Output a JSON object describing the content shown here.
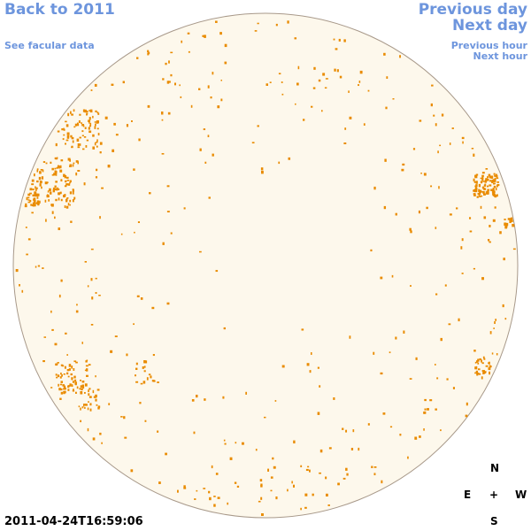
{
  "nav": {
    "back": "Back to 2011",
    "facular_data": "See facular data",
    "previous_day": "Previous day",
    "next_day": "Next day",
    "previous_hour": "Previous hour",
    "next_hour": "Next hour"
  },
  "compass": {
    "north": "N",
    "east": "E",
    "center": "+",
    "west": "W",
    "south": "S"
  },
  "timestamp": "2011-04-24T16:59:06"
}
